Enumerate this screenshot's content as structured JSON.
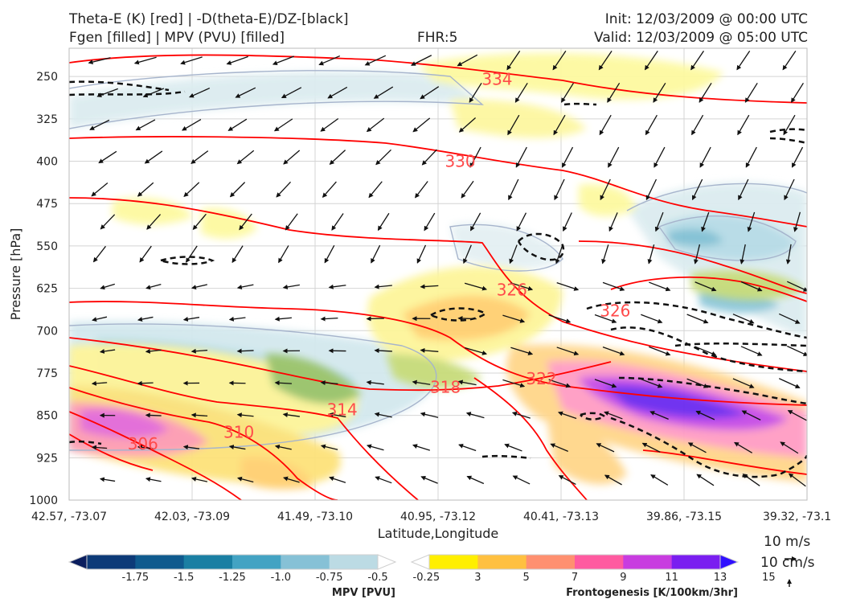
{
  "header": {
    "title_left_1": "Theta-E (K) [red] | -D(theta-E)/DZ-[black]",
    "title_left_2": "Fgen [filled] | MPV (PVU) [filled]",
    "fhr": "FHR:5",
    "init": "Init: 12/03/2009 @ 00:00 UTC",
    "valid": "Valid: 12/03/2009 @ 05:00 UTC"
  },
  "chart_data": {
    "type": "cross-section",
    "xlabel": "Latitude,Longitude",
    "ylabel": "Pressure [hPa]",
    "x_ticks": [
      "42.57, -73.07",
      "42.03, -73.09",
      "41.49, -73.10",
      "40.95, -73.12",
      "40.41, -73.13",
      "39.86, -73.15",
      "39.32, -73.1"
    ],
    "y_ticks": [
      250,
      325,
      400,
      475,
      550,
      625,
      700,
      775,
      850,
      925,
      1000
    ],
    "ylim": [
      1000,
      200
    ],
    "y_inverted": true,
    "grid": true,
    "theta_e_contour_labels": [
      {
        "value": "334",
        "x_frac": 0.58,
        "p": 255
      },
      {
        "value": "330",
        "x_frac": 0.53,
        "p": 400
      },
      {
        "value": "326",
        "x_frac": 0.6,
        "p": 628
      },
      {
        "value": "326",
        "x_frac": 0.74,
        "p": 665
      },
      {
        "value": "322",
        "x_frac": 0.64,
        "p": 785
      },
      {
        "value": "318",
        "x_frac": 0.51,
        "p": 800
      },
      {
        "value": "314",
        "x_frac": 0.37,
        "p": 840
      },
      {
        "value": "310",
        "x_frac": 0.23,
        "p": 880
      },
      {
        "value": "306",
        "x_frac": 0.1,
        "p": 900
      }
    ],
    "mpv_colorbar": {
      "label": "MPV [PVU]",
      "ticks": [
        "-1.75",
        "-1.5",
        "-1.25",
        "-1.0",
        "-0.75",
        "-0.5",
        "-0.25"
      ],
      "colors": [
        "#0a1e5e",
        "#0d3a78",
        "#0f5a8e",
        "#1a7fa3",
        "#43a3c3",
        "#86c1d6",
        "#bcdbe4",
        "#ffffff"
      ]
    },
    "fgen_colorbar": {
      "label": "Frontogenesis [K/100km/3hr]",
      "ticks": [
        "3",
        "5",
        "7",
        "9",
        "11",
        "13",
        "15"
      ],
      "colors": [
        "#ffffff",
        "#ffef00",
        "#ffc040",
        "#ff9070",
        "#ff5aa0",
        "#c83ce0",
        "#7a1ef0",
        "#3010ff"
      ]
    },
    "quiver_key": {
      "h_label": "10 m/s",
      "v_label": "10 cm/s"
    }
  }
}
